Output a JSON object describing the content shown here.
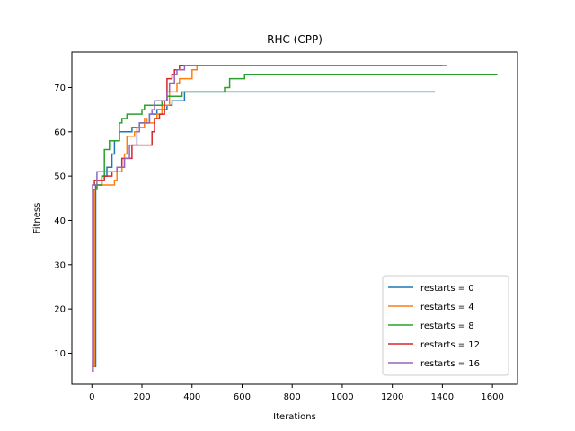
{
  "chart_data": {
    "type": "line",
    "title": "RHC (CPP)",
    "xlabel": "Iterations",
    "ylabel": "Fitness",
    "xlim": [
      -80,
      1700
    ],
    "ylim": [
      3,
      78
    ],
    "xticks": [
      0,
      200,
      400,
      600,
      800,
      1000,
      1200,
      1400,
      1600
    ],
    "yticks": [
      10,
      20,
      30,
      40,
      50,
      60,
      70
    ],
    "grid": false,
    "legend_position": "lower-right",
    "step": true,
    "series": [
      {
        "name": "restarts = 0",
        "color": "#1f77b4",
        "points": [
          [
            0,
            7
          ],
          [
            5,
            7
          ],
          [
            10,
            7
          ],
          [
            15,
            48
          ],
          [
            40,
            50
          ],
          [
            60,
            52
          ],
          [
            80,
            55
          ],
          [
            90,
            58
          ],
          [
            100,
            58
          ],
          [
            110,
            60
          ],
          [
            160,
            61
          ],
          [
            190,
            62
          ],
          [
            200,
            62
          ],
          [
            230,
            64
          ],
          [
            260,
            65
          ],
          [
            290,
            65
          ],
          [
            300,
            66
          ],
          [
            320,
            67
          ],
          [
            370,
            68
          ],
          [
            370,
            69
          ],
          [
            1370,
            69
          ]
        ]
      },
      {
        "name": "restarts = 4",
        "color": "#ff7f0e",
        "points": [
          [
            0,
            7
          ],
          [
            5,
            7
          ],
          [
            10,
            47
          ],
          [
            20,
            48
          ],
          [
            80,
            48
          ],
          [
            90,
            49
          ],
          [
            100,
            51
          ],
          [
            120,
            52
          ],
          [
            130,
            55
          ],
          [
            140,
            59
          ],
          [
            170,
            60
          ],
          [
            180,
            61
          ],
          [
            200,
            61
          ],
          [
            210,
            63
          ],
          [
            220,
            62
          ],
          [
            250,
            63
          ],
          [
            260,
            64
          ],
          [
            280,
            66
          ],
          [
            310,
            69
          ],
          [
            340,
            71
          ],
          [
            350,
            72
          ],
          [
            400,
            74
          ],
          [
            420,
            75
          ],
          [
            1400,
            75
          ],
          [
            1420,
            75
          ]
        ]
      },
      {
        "name": "restarts = 8",
        "color": "#2ca02c",
        "points": [
          [
            0,
            6
          ],
          [
            5,
            47
          ],
          [
            20,
            48
          ],
          [
            40,
            50
          ],
          [
            50,
            56
          ],
          [
            70,
            58
          ],
          [
            110,
            62
          ],
          [
            120,
            63
          ],
          [
            140,
            64
          ],
          [
            200,
            65
          ],
          [
            210,
            66
          ],
          [
            260,
            66
          ],
          [
            280,
            67
          ],
          [
            300,
            68
          ],
          [
            350,
            68
          ],
          [
            360,
            69
          ],
          [
            530,
            70
          ],
          [
            550,
            72
          ],
          [
            610,
            73
          ],
          [
            1620,
            73
          ]
        ]
      },
      {
        "name": "restarts = 12",
        "color": "#d62728",
        "points": [
          [
            0,
            6
          ],
          [
            3,
            48
          ],
          [
            10,
            49
          ],
          [
            30,
            49
          ],
          [
            50,
            50
          ],
          [
            80,
            51
          ],
          [
            100,
            52
          ],
          [
            120,
            54
          ],
          [
            150,
            54
          ],
          [
            160,
            57
          ],
          [
            240,
            60
          ],
          [
            250,
            63
          ],
          [
            270,
            64
          ],
          [
            290,
            67
          ],
          [
            300,
            72
          ],
          [
            320,
            73
          ],
          [
            330,
            74
          ],
          [
            350,
            75
          ],
          [
            1380,
            75
          ]
        ]
      },
      {
        "name": "restarts = 16",
        "color": "#9467bd",
        "points": [
          [
            0,
            6
          ],
          [
            3,
            48
          ],
          [
            20,
            51
          ],
          [
            80,
            51
          ],
          [
            100,
            52
          ],
          [
            130,
            54
          ],
          [
            150,
            57
          ],
          [
            180,
            60
          ],
          [
            190,
            62
          ],
          [
            230,
            64
          ],
          [
            240,
            65
          ],
          [
            250,
            67
          ],
          [
            300,
            69
          ],
          [
            310,
            71
          ],
          [
            330,
            73
          ],
          [
            340,
            74
          ],
          [
            370,
            75
          ],
          [
            1400,
            75
          ]
        ]
      }
    ]
  }
}
